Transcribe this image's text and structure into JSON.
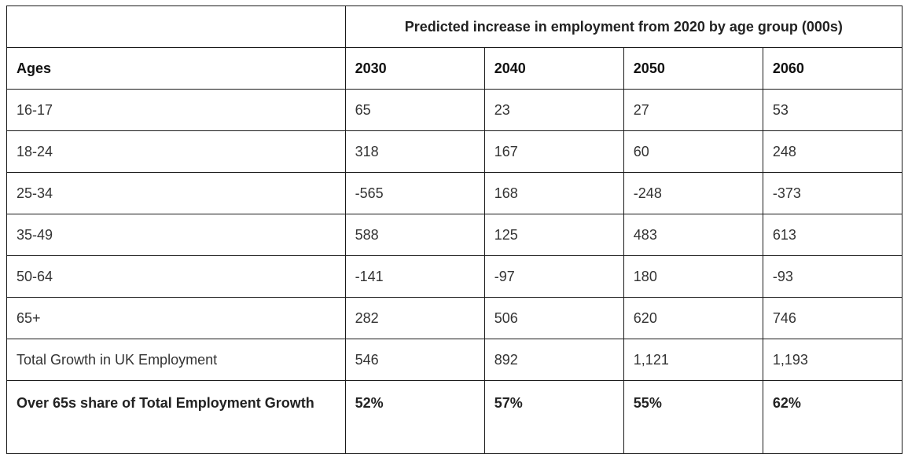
{
  "table": {
    "title": "Predicted increase in employment from 2020 by age group (000s)",
    "header": {
      "label": "Ages",
      "years": [
        "2030",
        "2040",
        "2050",
        "2060"
      ]
    },
    "rows": [
      {
        "label": "16-17",
        "values": [
          "65",
          "23",
          "27",
          "53"
        ]
      },
      {
        "label": "18-24",
        "values": [
          "318",
          "167",
          "60",
          "248"
        ]
      },
      {
        "label": "25-34",
        "values": [
          "-565",
          "168",
          "-248",
          "-373"
        ]
      },
      {
        "label": "35-49",
        "values": [
          "588",
          "125",
          "483",
          "613"
        ]
      },
      {
        "label": "50-64",
        "values": [
          "-141",
          "-97",
          "180",
          "-93"
        ]
      },
      {
        "label": "65+",
        "values": [
          "282",
          "506",
          "620",
          "746"
        ]
      },
      {
        "label": "Total Growth in UK Employment",
        "values": [
          "546",
          "892",
          "1,121",
          "1,193"
        ]
      }
    ],
    "share_row": {
      "label": "Over 65s share of Total Employment Growth",
      "values": [
        "52%",
        "57%",
        "55%",
        "62%"
      ]
    }
  }
}
